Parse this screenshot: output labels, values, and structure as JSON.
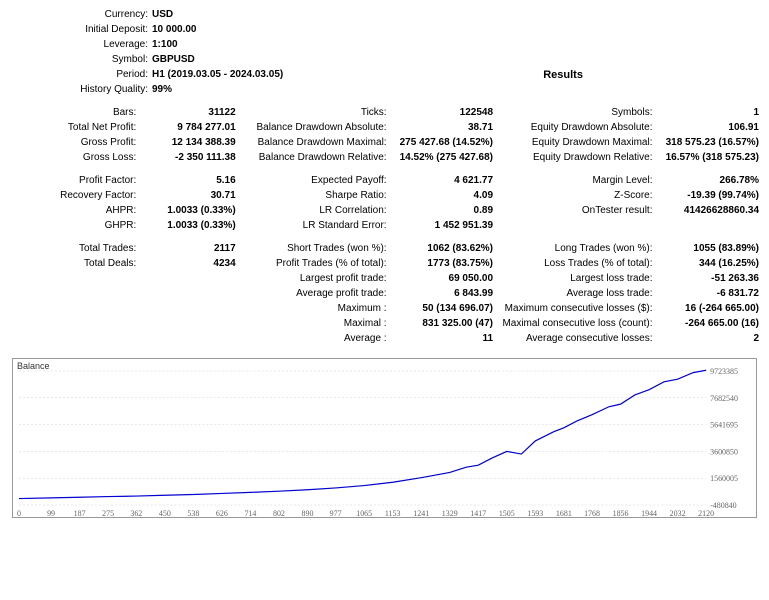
{
  "header": {
    "currency_label": "Currency:",
    "currency": "USD",
    "deposit_label": "Initial Deposit:",
    "deposit": "10 000.00",
    "leverage_label": "Leverage:",
    "leverage": "1:100",
    "symbol_label": "Symbol:",
    "symbol": "GBPUSD",
    "period_label": "Period:",
    "period": "H1 (2019.03.05 - 2024.03.05)",
    "quality_label": "History Quality:",
    "quality": "99%",
    "results_title": "Results"
  },
  "r": {
    "bars_l": "Bars:",
    "bars": "31122",
    "ticks_l": "Ticks:",
    "ticks": "122548",
    "symbols_l": "Symbols:",
    "symbols": "1",
    "tnp_l": "Total Net Profit:",
    "tnp": "9 784 277.01",
    "bda_l": "Balance Drawdown Absolute:",
    "bda": "38.71",
    "eda_l": "Equity Drawdown Absolute:",
    "eda": "106.91",
    "gp_l": "Gross Profit:",
    "gp": "12 134 388.39",
    "bdm_l": "Balance Drawdown Maximal:",
    "bdm": "275 427.68 (14.52%)",
    "edm_l": "Equity Drawdown Maximal:",
    "edm": "318 575.23 (16.57%)",
    "gl_l": "Gross Loss:",
    "gl": "-2 350 111.38",
    "bdr_l": "Balance Drawdown Relative:",
    "bdr": "14.52% (275 427.68)",
    "edr_l": "Equity Drawdown Relative:",
    "edr": "16.57% (318 575.23)",
    "pf_l": "Profit Factor:",
    "pf": "5.16",
    "ep_l": "Expected Payoff:",
    "ep": "4 621.77",
    "ml_l": "Margin Level:",
    "ml": "266.78%",
    "rf_l": "Recovery Factor:",
    "rf": "30.71",
    "sr_l": "Sharpe Ratio:",
    "sr": "4.09",
    "zs_l": "Z-Score:",
    "zs": "-19.39 (99.74%)",
    "ahpr_l": "AHPR:",
    "ahpr": "1.0033 (0.33%)",
    "lrc_l": "LR Correlation:",
    "lrc": "0.89",
    "ot_l": "OnTester result:",
    "ot": "41426628860.34",
    "ghpr_l": "GHPR:",
    "ghpr": "1.0033 (0.33%)",
    "lrse_l": "LR Standard Error:",
    "lrse": "1 452 951.39",
    "tt_l": "Total Trades:",
    "tt": "2117",
    "st_l": "Short Trades (won %):",
    "st": "1062 (83.62%)",
    "lt_l": "Long Trades (won %):",
    "lt": "1055 (83.89%)",
    "td_l": "Total Deals:",
    "td": "4234",
    "pt_l": "Profit Trades (% of total):",
    "pt": "1773 (83.75%)",
    "ltr_l": "Loss Trades (% of total):",
    "ltr": "344 (16.25%)",
    "lpt_l": "Largest profit trade:",
    "lpt": "69 050.00",
    "llt_l": "Largest loss trade:",
    "llt": "-51 263.36",
    "apt_l": "Average profit trade:",
    "apt": "6 843.99",
    "alt_l": "Average loss trade:",
    "alt": "-6 831.72",
    "mcw_l": "Maximum :",
    "mcw": "50 (134 696.07)",
    "mcl_l": "Maximum consecutive losses ($):",
    "mcl": "16 (-264 665.00)",
    "mxw_l": "Maximal :",
    "mxw": "831 325.00 (47)",
    "mxl_l": "Maximal consecutive loss (count):",
    "mxl": "-264 665.00 (16)",
    "acw_l": "Average :",
    "acw": "11",
    "acl_l": "Average consecutive losses:",
    "acl": "2"
  },
  "chart": {
    "title": "Balance",
    "line_color": "#0000d0",
    "grid_color": "#d0d0d0",
    "y_labels": [
      "9723385",
      "7682540",
      "5641695",
      "3600850",
      "1560005",
      "-480840"
    ],
    "x_labels": [
      "0",
      "99",
      "187",
      "275",
      "362",
      "450",
      "538",
      "626",
      "714",
      "802",
      "890",
      "977",
      "1065",
      "1153",
      "1241",
      "1329",
      "1417",
      "1505",
      "1593",
      "1681",
      "1768",
      "1856",
      "1944",
      "2032",
      "2120"
    ],
    "ylim": [
      -480840,
      9723385
    ],
    "points": [
      [
        0,
        10000
      ],
      [
        99,
        60000
      ],
      [
        187,
        110000
      ],
      [
        275,
        160000
      ],
      [
        362,
        200000
      ],
      [
        450,
        260000
      ],
      [
        538,
        320000
      ],
      [
        626,
        400000
      ],
      [
        714,
        480000
      ],
      [
        802,
        570000
      ],
      [
        890,
        680000
      ],
      [
        977,
        820000
      ],
      [
        1065,
        1000000
      ],
      [
        1153,
        1250000
      ],
      [
        1241,
        1600000
      ],
      [
        1329,
        2000000
      ],
      [
        1380,
        2400000
      ],
      [
        1417,
        2550000
      ],
      [
        1460,
        3100000
      ],
      [
        1505,
        3600000
      ],
      [
        1550,
        3400000
      ],
      [
        1593,
        4400000
      ],
      [
        1650,
        5100000
      ],
      [
        1681,
        5400000
      ],
      [
        1720,
        5900000
      ],
      [
        1768,
        6400000
      ],
      [
        1820,
        7000000
      ],
      [
        1856,
        7200000
      ],
      [
        1900,
        7900000
      ],
      [
        1944,
        8300000
      ],
      [
        1990,
        8900000
      ],
      [
        2032,
        9100000
      ],
      [
        2080,
        9600000
      ],
      [
        2120,
        9780000
      ]
    ]
  }
}
